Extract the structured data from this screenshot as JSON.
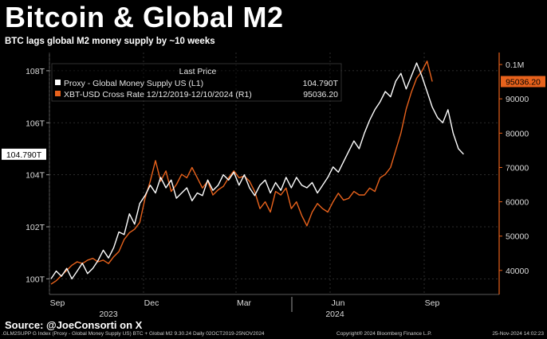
{
  "header": {
    "title": "Bitcoin & Global M2",
    "subtitle": "BTC lags global M2 money supply by ~10 weeks"
  },
  "legend": {
    "title": "Last Price",
    "items": [
      {
        "label": "Proxy - Global Money Supply US  (L1)",
        "value": "104.790T",
        "color": "#ffffff"
      },
      {
        "label": "XBT-USD Cross Rate 12/12/2019-12/10/2024   (R1)",
        "value": "95036.20",
        "color": "#e8621c"
      }
    ]
  },
  "source": "Source: @JoeConsorti on X",
  "footer": {
    "left": ".GLM2SUPP G Index (Proxy - Global Money Supply US) BTC + Global M2 9.30.24 Daily 02OCT2019-25NOV2024",
    "mid": "Copyright® 2024 Bloomberg Finance L.P.",
    "right": "25-Nov-2024 14:02:23"
  },
  "chart_data": {
    "type": "line",
    "x_tick_labels": [
      "Sep",
      "Dec",
      "Mar",
      "Jun",
      "Sep"
    ],
    "x_year_labels": [
      "2023",
      "2024"
    ],
    "y_left": {
      "ticks": [
        100,
        102,
        104,
        106,
        108
      ],
      "tick_labels": [
        "100T",
        "102T",
        "104T",
        "106T",
        "108T"
      ],
      "range": [
        99.4,
        108.7
      ]
    },
    "y_right": {
      "ticks": [
        40000,
        50000,
        60000,
        70000,
        80000,
        90000,
        100000
      ],
      "tick_labels": [
        "40000",
        "50000",
        "60000",
        "70000",
        "80000",
        "90000",
        "0.1M"
      ],
      "range": [
        33000,
        103500
      ]
    },
    "last_value_tags": {
      "left": "104.790T",
      "right": "95036.20"
    },
    "grid": true,
    "legend_placement": "top-left",
    "series": [
      {
        "name": "Proxy - Global Money Supply US (L1)",
        "axis": "left",
        "color": "#ffffff",
        "points": [
          [
            0,
            100.0
          ],
          [
            1,
            100.3
          ],
          [
            2,
            100.1
          ],
          [
            3,
            100.4
          ],
          [
            4,
            100.0
          ],
          [
            5,
            100.3
          ],
          [
            6,
            100.6
          ],
          [
            7,
            100.2
          ],
          [
            8,
            100.4
          ],
          [
            9,
            100.7
          ],
          [
            10,
            101.1
          ],
          [
            11,
            100.8
          ],
          [
            12,
            101.2
          ],
          [
            13,
            101.8
          ],
          [
            14,
            101.7
          ],
          [
            15,
            102.5
          ],
          [
            16,
            102.1
          ],
          [
            17,
            102.9
          ],
          [
            18,
            103.2
          ],
          [
            19,
            103.6
          ],
          [
            20,
            103.3
          ],
          [
            21,
            103.9
          ],
          [
            22,
            103.5
          ],
          [
            23,
            103.8
          ],
          [
            24,
            103.1
          ],
          [
            25,
            103.3
          ],
          [
            26,
            103.5
          ],
          [
            27,
            103.0
          ],
          [
            28,
            103.3
          ],
          [
            29,
            103.2
          ],
          [
            30,
            103.8
          ],
          [
            31,
            103.4
          ],
          [
            32,
            103.6
          ],
          [
            33,
            104.0
          ],
          [
            34,
            103.8
          ],
          [
            35,
            104.1
          ],
          [
            36,
            103.6
          ],
          [
            37,
            104.0
          ],
          [
            38,
            103.5
          ],
          [
            39,
            103.2
          ],
          [
            40,
            103.6
          ],
          [
            41,
            103.8
          ],
          [
            42,
            103.3
          ],
          [
            43,
            103.7
          ],
          [
            44,
            103.4
          ],
          [
            45,
            103.9
          ],
          [
            46,
            103.5
          ],
          [
            47,
            103.9
          ],
          [
            48,
            103.6
          ],
          [
            49,
            103.5
          ],
          [
            50,
            103.7
          ],
          [
            51,
            103.3
          ],
          [
            52,
            103.6
          ],
          [
            53,
            103.9
          ],
          [
            54,
            104.3
          ],
          [
            55,
            104.1
          ],
          [
            56,
            104.5
          ],
          [
            57,
            104.9
          ],
          [
            58,
            105.3
          ],
          [
            59,
            105.0
          ],
          [
            60,
            105.6
          ],
          [
            61,
            106.1
          ],
          [
            62,
            106.5
          ],
          [
            63,
            106.8
          ],
          [
            64,
            107.2
          ],
          [
            65,
            107.0
          ],
          [
            66,
            107.6
          ],
          [
            67,
            107.9
          ],
          [
            68,
            107.3
          ],
          [
            69,
            107.8
          ],
          [
            70,
            108.3
          ],
          [
            71,
            107.8
          ],
          [
            72,
            107.2
          ],
          [
            73,
            106.6
          ],
          [
            74,
            106.2
          ],
          [
            75,
            106.0
          ],
          [
            76,
            106.5
          ],
          [
            77,
            105.6
          ],
          [
            78,
            105.0
          ],
          [
            79,
            104.79
          ]
        ]
      },
      {
        "name": "XBT-USD Cross Rate 12/12/2019-12/10/2024 (R1)",
        "axis": "right",
        "color": "#e8621c",
        "points": [
          [
            0,
            36000
          ],
          [
            1,
            37000
          ],
          [
            2,
            38500
          ],
          [
            3,
            40000
          ],
          [
            4,
            41500
          ],
          [
            5,
            42500
          ],
          [
            6,
            42000
          ],
          [
            7,
            43000
          ],
          [
            8,
            43500
          ],
          [
            9,
            42500
          ],
          [
            10,
            43000
          ],
          [
            11,
            42000
          ],
          [
            12,
            44000
          ],
          [
            13,
            45500
          ],
          [
            14,
            49000
          ],
          [
            15,
            51000
          ],
          [
            16,
            52000
          ],
          [
            17,
            54000
          ],
          [
            18,
            61000
          ],
          [
            19,
            66000
          ],
          [
            20,
            72000
          ],
          [
            21,
            66000
          ],
          [
            22,
            69000
          ],
          [
            23,
            63000
          ],
          [
            24,
            65000
          ],
          [
            25,
            68000
          ],
          [
            26,
            67000
          ],
          [
            27,
            70000
          ],
          [
            28,
            67000
          ],
          [
            29,
            64000
          ],
          [
            30,
            66000
          ],
          [
            31,
            62000
          ],
          [
            32,
            63500
          ],
          [
            33,
            64500
          ],
          [
            34,
            67000
          ],
          [
            35,
            69000
          ],
          [
            36,
            67000
          ],
          [
            37,
            67500
          ],
          [
            38,
            66000
          ],
          [
            39,
            63000
          ],
          [
            40,
            58000
          ],
          [
            41,
            60000
          ],
          [
            42,
            57000
          ],
          [
            43,
            63000
          ],
          [
            44,
            62000
          ],
          [
            45,
            64000
          ],
          [
            46,
            58000
          ],
          [
            47,
            60000
          ],
          [
            48,
            56000
          ],
          [
            49,
            53000
          ],
          [
            50,
            57000
          ],
          [
            51,
            59500
          ],
          [
            52,
            58000
          ],
          [
            53,
            57000
          ],
          [
            54,
            60000
          ],
          [
            55,
            62500
          ],
          [
            56,
            60500
          ],
          [
            57,
            61000
          ],
          [
            58,
            63000
          ],
          [
            59,
            62000
          ],
          [
            60,
            62000
          ],
          [
            61,
            64000
          ],
          [
            62,
            63000
          ],
          [
            63,
            67000
          ],
          [
            64,
            68000
          ],
          [
            65,
            70000
          ],
          [
            66,
            75000
          ],
          [
            67,
            80000
          ],
          [
            68,
            87000
          ],
          [
            69,
            92000
          ],
          [
            70,
            96000
          ],
          [
            71,
            98000
          ],
          [
            72,
            101000
          ],
          [
            73,
            95036.2
          ]
        ]
      }
    ]
  }
}
